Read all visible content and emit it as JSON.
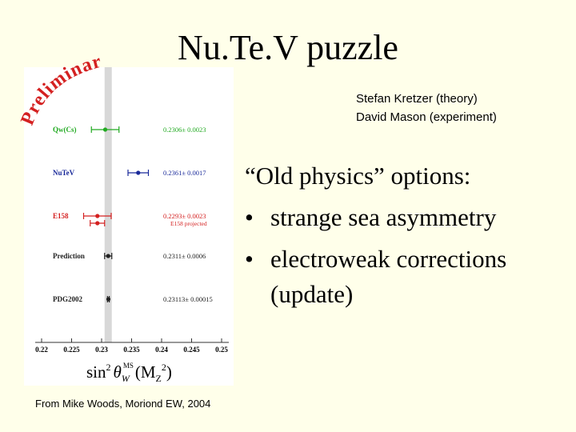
{
  "title": "Nu.Te.V puzzle",
  "credits": [
    "Stefan Kretzer (theory)",
    "David Mason (experiment)"
  ],
  "heading": "“Old physics” options:",
  "bullets": [
    "strange sea asymmetry",
    "electroweak corrections",
    "(update)"
  ],
  "footer": "From Mike Woods, Moriond EW, 2004",
  "chart_data": {
    "type": "errorbar",
    "watermark": "Preliminary",
    "categories": [
      "Qw(Cs)",
      "NuTeV",
      "E158",
      null,
      "Prediction",
      "PDG2002"
    ],
    "values": [
      0.2306,
      0.2361,
      0.2293,
      0.2293,
      0.2311,
      0.23113
    ],
    "errors": [
      0.0023,
      0.0017,
      0.0023,
      0.0012,
      0.0006,
      0.00015
    ],
    "value_labels": [
      "0.2306± 0.0023",
      "0.2361± 0.0017",
      "0.2293± 0.0023",
      null,
      "0.2311± 0.0006",
      "0.23113± 0.00015"
    ],
    "colors": [
      "#22aa22",
      "#1a2a9a",
      "#d42020",
      "#d42020",
      "#222222",
      "#222222"
    ],
    "annotations": [
      "E158 projected"
    ],
    "xlabel": [
      "sin",
      "2",
      "θ",
      "W",
      "MS",
      "(M",
      "Z",
      "2",
      ")"
    ],
    "xlim": [
      0.22,
      0.25
    ],
    "xticks": [
      0.22,
      0.225,
      0.23,
      0.235,
      0.24,
      0.245,
      0.25
    ]
  }
}
